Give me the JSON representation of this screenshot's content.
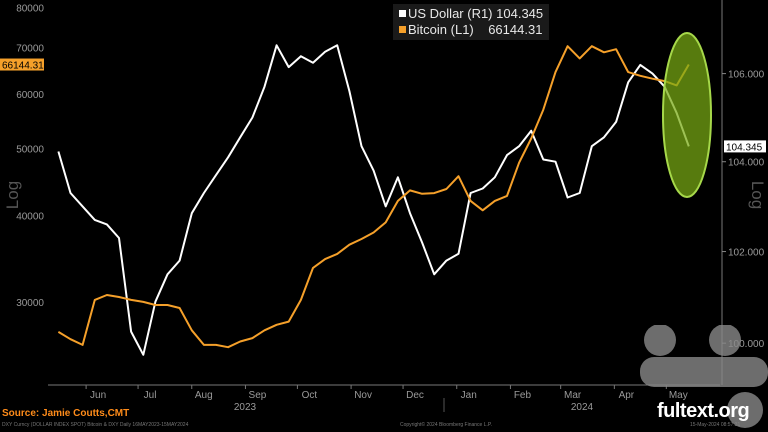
{
  "chart_data": {
    "type": "line",
    "xlabel": "",
    "x_tick_labels": [
      "Jun",
      "Jul",
      "Aug",
      "Sep",
      "Oct",
      "Nov",
      "Dec",
      "Jan",
      "Feb",
      "Mar",
      "Apr",
      "May"
    ],
    "x_year_labels": [
      "2023",
      "2024"
    ],
    "x_sampling": {
      "start": "2023-05-16",
      "step_days": 7
    },
    "left_axis": {
      "label": "Log",
      "scale": "log",
      "ylim": [
        22750,
        82000
      ],
      "ticks": [
        30000,
        40000,
        50000,
        60000,
        70000,
        80000
      ],
      "tick_labels": [
        "30000",
        "40000",
        "50000",
        "60000",
        "70000",
        "80000"
      ]
    },
    "right_axis": {
      "label": "Log",
      "scale": "log",
      "ylim": [
        99.1,
        107.7
      ],
      "ticks": [
        100,
        102,
        104,
        106
      ],
      "tick_labels": [
        "100.000",
        "102.000",
        "104.000",
        "106.000"
      ]
    },
    "series": [
      {
        "name": "US Dollar (R1)",
        "last": "104.345",
        "axis": "right",
        "color": "#ffffff",
        "values": [
          104.23,
          103.3,
          103.0,
          102.7,
          102.6,
          102.3,
          100.25,
          99.75,
          100.9,
          101.5,
          101.8,
          102.85,
          103.3,
          103.7,
          104.1,
          104.55,
          105.0,
          105.7,
          106.65,
          106.15,
          106.4,
          106.25,
          106.5,
          106.65,
          105.6,
          104.35,
          103.8,
          103.0,
          103.65,
          102.85,
          102.2,
          101.5,
          101.8,
          101.95,
          103.3,
          103.4,
          103.65,
          104.15,
          104.35,
          104.7,
          104.05,
          104.0,
          103.2,
          103.3,
          104.35,
          104.55,
          104.9,
          105.8,
          106.2,
          106.0,
          105.7,
          105.1,
          104.345
        ]
      },
      {
        "name": "Bitcoin (L1)",
        "last": "66144.31",
        "axis": "left",
        "color": "#f5a02a",
        "values": [
          27150,
          26500,
          26000,
          30200,
          30700,
          30500,
          30200,
          30000,
          29700,
          29700,
          29400,
          27300,
          26000,
          26000,
          25800,
          26300,
          26600,
          27300,
          27800,
          28100,
          30200,
          33600,
          34600,
          35200,
          36300,
          37000,
          37800,
          39100,
          42000,
          43500,
          43000,
          43100,
          43700,
          45600,
          42000,
          40700,
          42000,
          42700,
          47700,
          51700,
          56900,
          64500,
          70300,
          67500,
          70300,
          68900,
          69600,
          64500,
          63700,
          63100,
          62600,
          61700,
          66144.31
        ]
      }
    ],
    "annotation": {
      "type": "ellipse-highlight",
      "color": "#8cc63f",
      "covers": "last ~5 weeks (Apr-May 2024)"
    },
    "legend_position": "top-center",
    "grid": false
  },
  "source": "Source: Jamie Coutts,CMT",
  "footer_left": "DXY Curncy (DOLLAR INDEX SPOT) Bitcoin & DXY  Daily 16MAY2023-15MAY2024",
  "footer_center": "Copyright© 2024 Bloomberg Finance L.P.",
  "footer_right": "15-May-2024 08:57:31",
  "watermark": "fultext.org"
}
